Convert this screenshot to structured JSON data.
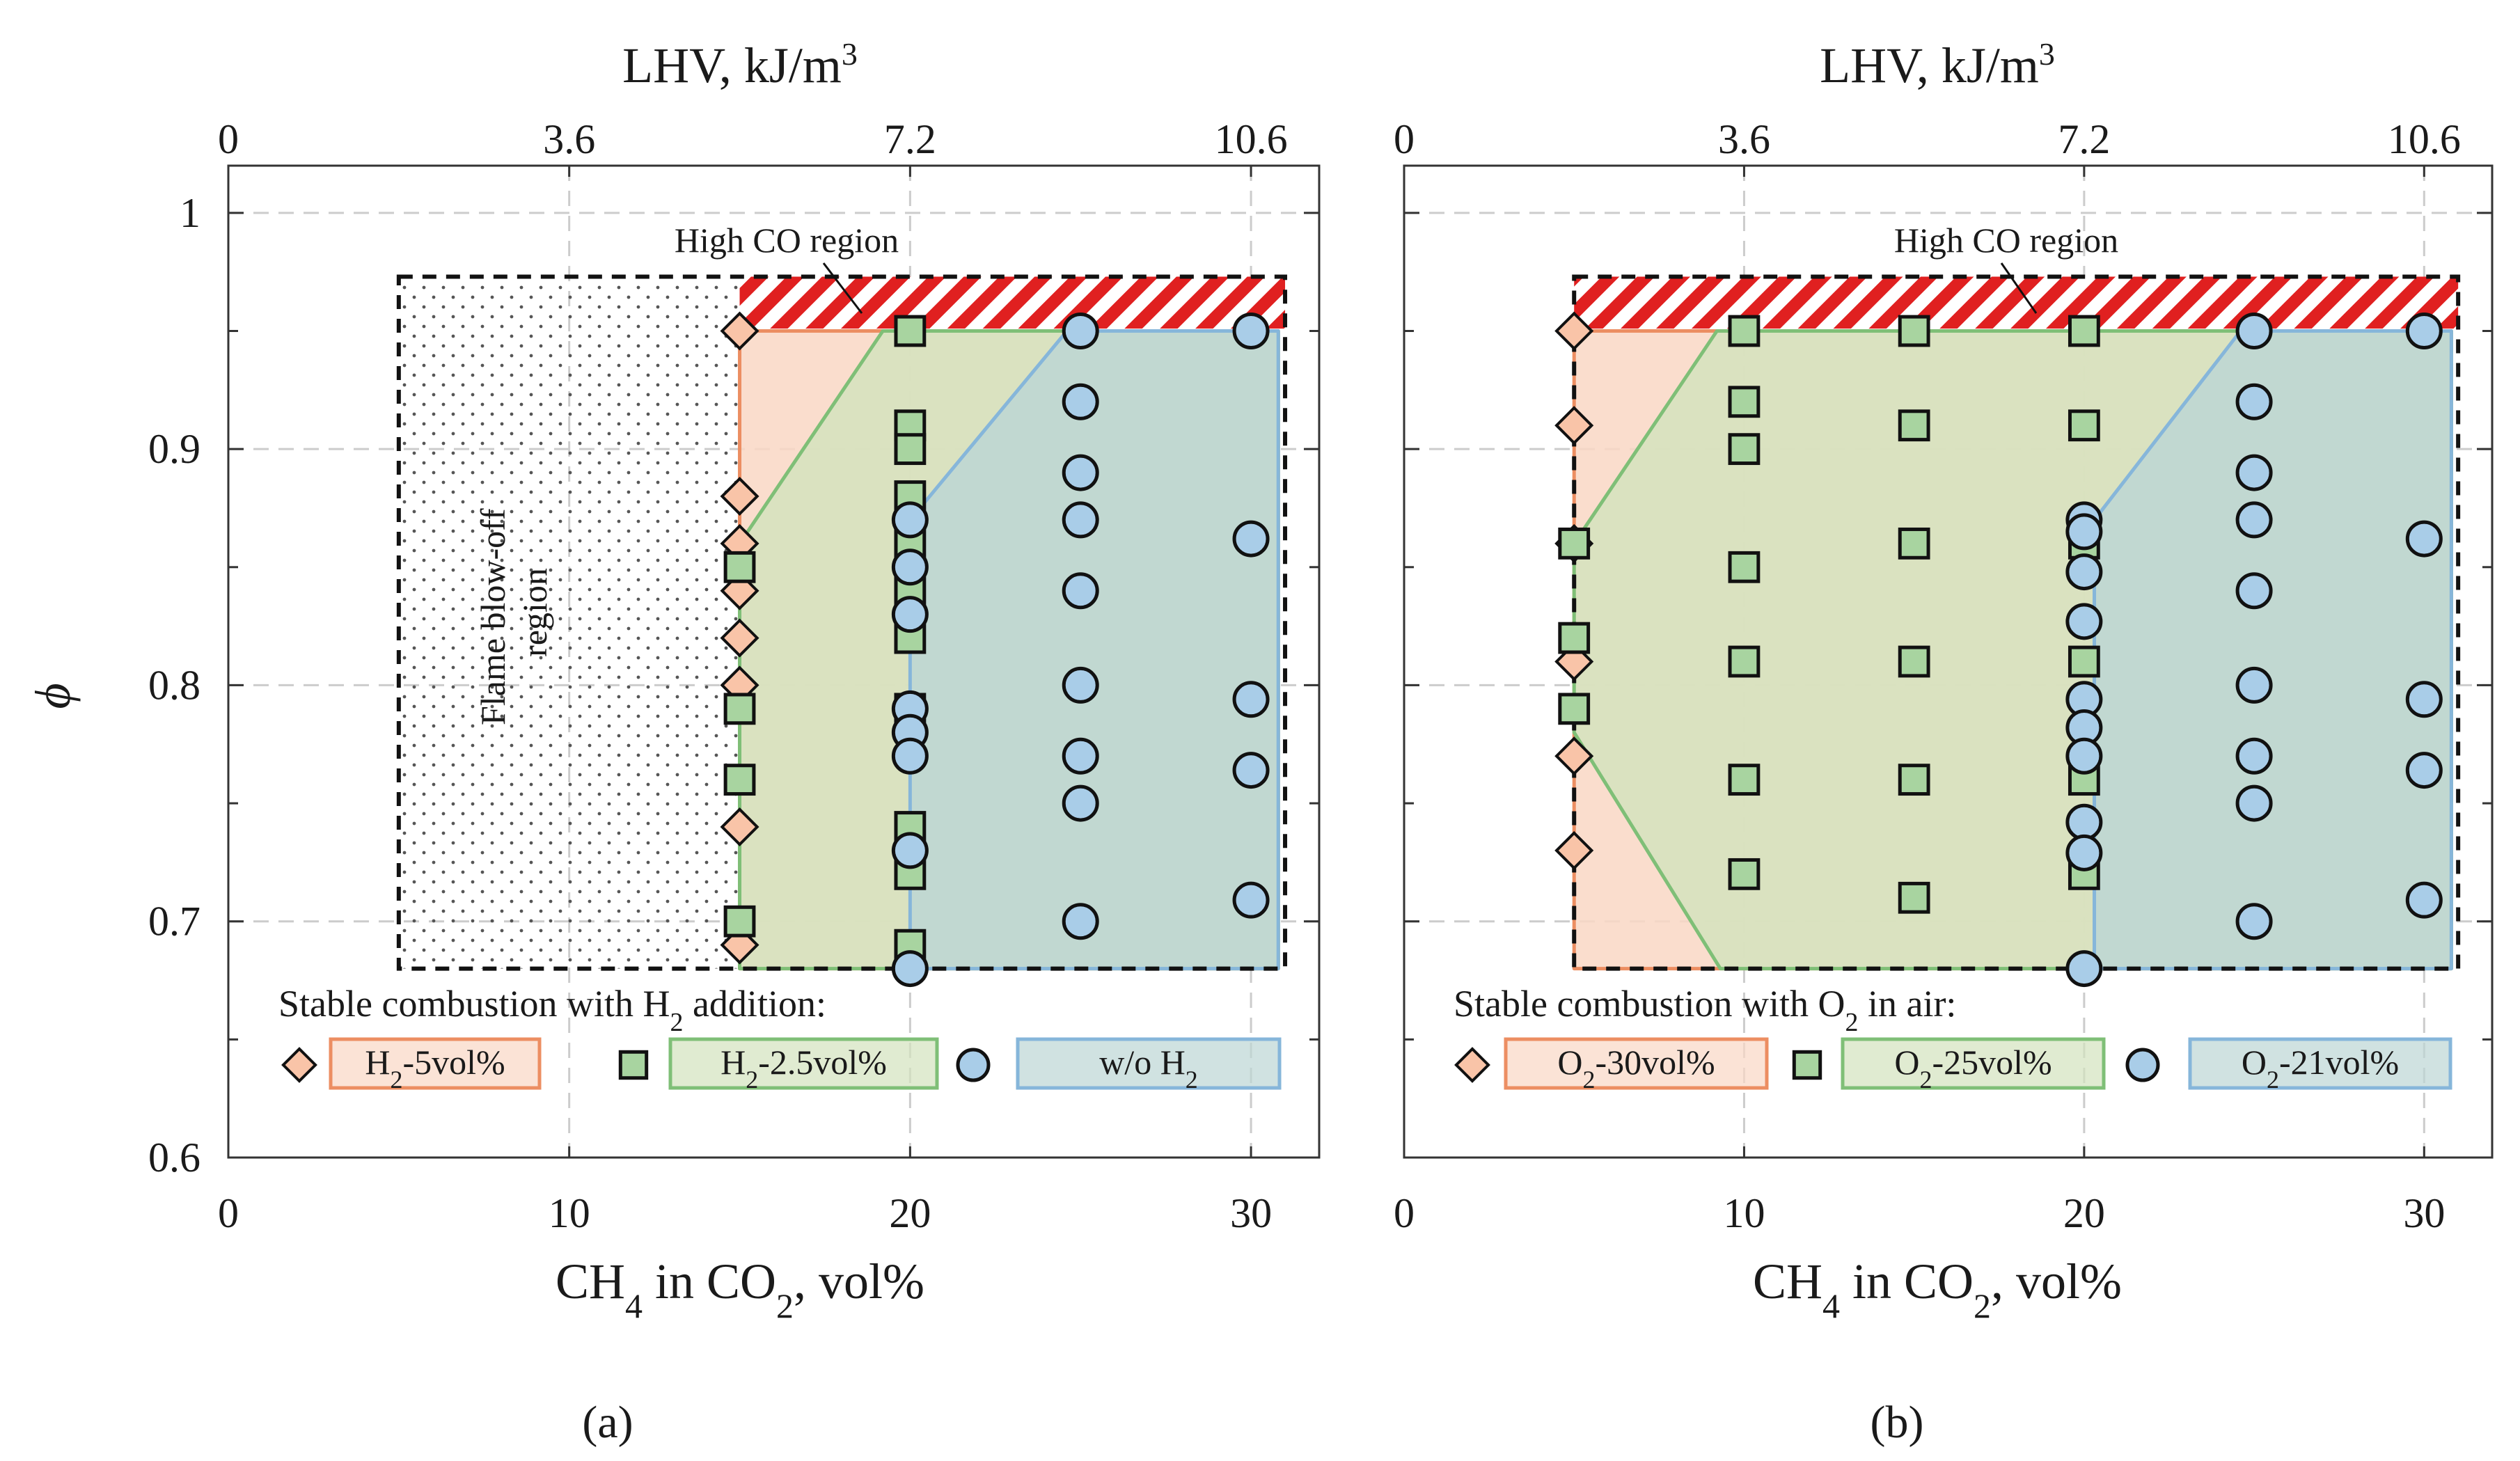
{
  "figure_labels": {
    "a": "(a)",
    "b": "(b)"
  },
  "colors": {
    "h2_5": "#f9c4a8",
    "h2_5_edge": "#ec8e62",
    "h2_25": "#a8d4a0",
    "h2_25_edge": "#7fbf77",
    "woh2": "#a9cde8",
    "woh2_edge": "#86b6da",
    "region_h2_5": "#f9d7c4",
    "region_h2_25": "#d3e3bd",
    "region_woh2": "#bcd6d4",
    "hatch": "#e02020",
    "grid": "#cccccc"
  },
  "chart_data": [
    {
      "type": "scatter",
      "panel": "a",
      "xlabel_bottom_main": "CH",
      "xlabel_bottom_sub": "4",
      "xlabel_bottom_mid": " in CO",
      "xlabel_bottom_sub2": "2",
      "xlabel_bottom_end": ", vol%",
      "xlabel_top_main": "LHV, kJ/m",
      "xlabel_top_sup": "3",
      "ylabel": "ϕ",
      "xlim": [
        0,
        32
      ],
      "ylim": [
        0.6,
        1.02
      ],
      "x_ticks": [
        0,
        10,
        20,
        30
      ],
      "x_tick_labels": [
        "0",
        "10",
        "20",
        "30"
      ],
      "x_top_ticks": [
        0,
        10,
        20,
        30
      ],
      "x_top_tick_labels": [
        "0",
        "3.6",
        "7.2",
        "10.6"
      ],
      "y_ticks": [
        0.6,
        0.7,
        0.8,
        0.9,
        1.0
      ],
      "y_tick_labels": [
        "0.6",
        "0.7",
        "0.8",
        "0.9",
        "1"
      ],
      "annotation_high_co": "High CO region",
      "annotation_blowoff_1": "Flame blow-off",
      "annotation_blowoff_2": "region",
      "legend_title_main": "Stable combustion with H",
      "legend_title_sub": "2",
      "legend_title_end": " addition:",
      "series": [
        {
          "name": "H2-5vol%",
          "label_main": "H",
          "label_sub": "2",
          "label_end": "-5vol%",
          "marker": "diamond",
          "points": [
            [
              15,
              0.95
            ],
            [
              15,
              0.88
            ],
            [
              15,
              0.86
            ],
            [
              15,
              0.84
            ],
            [
              15,
              0.82
            ],
            [
              15,
              0.8
            ],
            [
              15,
              0.74
            ],
            [
              15,
              0.69
            ]
          ],
          "region": [
            [
              15,
              0.95
            ],
            [
              30.8,
              0.95
            ],
            [
              30.8,
              0.68
            ],
            [
              15,
              0.68
            ]
          ]
        },
        {
          "name": "H2-2.5vol%",
          "label_main": "H",
          "label_sub": "2",
          "label_end": "-2.5vol%",
          "marker": "square",
          "points": [
            [
              15,
              0.85
            ],
            [
              15,
              0.79
            ],
            [
              15,
              0.76
            ],
            [
              15,
              0.7
            ],
            [
              20,
              0.95
            ],
            [
              20,
              0.91
            ],
            [
              20,
              0.9
            ],
            [
              20,
              0.88
            ],
            [
              20,
              0.86
            ],
            [
              20,
              0.84
            ],
            [
              20,
              0.82
            ],
            [
              20,
              0.79
            ],
            [
              20,
              0.74
            ],
            [
              20,
              0.72
            ],
            [
              20,
              0.69
            ]
          ],
          "region": [
            [
              15,
              0.86
            ],
            [
              19.2,
              0.95
            ],
            [
              30.8,
              0.95
            ],
            [
              30.8,
              0.68
            ],
            [
              15,
              0.68
            ]
          ]
        },
        {
          "name": "w/o H2",
          "label_main": "w/o H",
          "label_sub": "2",
          "label_end": "",
          "marker": "circle",
          "points": [
            [
              20,
              0.87
            ],
            [
              20,
              0.85
            ],
            [
              20,
              0.83
            ],
            [
              20,
              0.79
            ],
            [
              20,
              0.78
            ],
            [
              20,
              0.77
            ],
            [
              20,
              0.73
            ],
            [
              20,
              0.68
            ],
            [
              25,
              0.95
            ],
            [
              25,
              0.92
            ],
            [
              25,
              0.89
            ],
            [
              25,
              0.87
            ],
            [
              25,
              0.84
            ],
            [
              25,
              0.8
            ],
            [
              25,
              0.77
            ],
            [
              25,
              0.75
            ],
            [
              25,
              0.7
            ],
            [
              30,
              0.95
            ],
            [
              30,
              0.862
            ],
            [
              30,
              0.794
            ],
            [
              30,
              0.764
            ],
            [
              30,
              0.709
            ]
          ],
          "region": [
            [
              20,
              0.8
            ],
            [
              20,
              0.87
            ],
            [
              24.6,
              0.95
            ],
            [
              30.8,
              0.95
            ],
            [
              30.8,
              0.68
            ],
            [
              20,
              0.68
            ]
          ]
        }
      ],
      "blowoff_region": [
        [
          5,
          0.68
        ],
        [
          15,
          0.97
        ]
      ],
      "dashed_box": [
        [
          5,
          0.68
        ],
        [
          31,
          0.973
        ]
      ],
      "high_co_band": [
        [
          15,
          0.951
        ],
        [
          31,
          0.973
        ]
      ]
    },
    {
      "type": "scatter",
      "panel": "b",
      "xlabel_bottom_main": "CH",
      "xlabel_bottom_sub": "4",
      "xlabel_bottom_mid": " in CO",
      "xlabel_bottom_sub2": "2",
      "xlabel_bottom_end": ", vol%",
      "xlabel_top_main": "LHV, kJ/m",
      "xlabel_top_sup": "3",
      "xlim": [
        0,
        32
      ],
      "ylim": [
        0.6,
        1.02
      ],
      "x_ticks": [
        0,
        10,
        20,
        30
      ],
      "x_tick_labels": [
        "0",
        "10",
        "20",
        "30"
      ],
      "x_top_ticks": [
        0,
        10,
        20,
        30
      ],
      "x_top_tick_labels": [
        "0",
        "3.6",
        "7.2",
        "10.6"
      ],
      "y_ticks": [
        0.6,
        0.7,
        0.8,
        0.9,
        1.0
      ],
      "annotation_high_co": "High CO region",
      "legend_title_main": "Stable combustion with O",
      "legend_title_sub": "2",
      "legend_title_end": " in air:",
      "series": [
        {
          "name": "O2-30vol%",
          "label_main": "O",
          "label_sub": "2",
          "label_end": "-30vol%",
          "marker": "diamond",
          "points": [
            [
              5,
              0.95
            ],
            [
              5,
              0.91
            ],
            [
              5,
              0.86
            ],
            [
              5,
              0.81
            ],
            [
              5,
              0.77
            ],
            [
              5,
              0.73
            ]
          ],
          "region": [
            [
              5,
              0.95
            ],
            [
              30.8,
              0.95
            ],
            [
              30.8,
              0.68
            ],
            [
              5,
              0.68
            ]
          ]
        },
        {
          "name": "O2-25vol%",
          "label_main": "O",
          "label_sub": "2",
          "label_end": "-25vol%",
          "marker": "square",
          "points": [
            [
              5,
              0.86
            ],
            [
              5,
              0.82
            ],
            [
              5,
              0.79
            ],
            [
              10,
              0.95
            ],
            [
              10,
              0.92
            ],
            [
              10,
              0.9
            ],
            [
              10,
              0.85
            ],
            [
              10,
              0.81
            ],
            [
              10,
              0.76
            ],
            [
              10,
              0.72
            ],
            [
              15,
              0.95
            ],
            [
              15,
              0.91
            ],
            [
              15,
              0.86
            ],
            [
              15,
              0.81
            ],
            [
              15,
              0.76
            ],
            [
              15,
              0.71
            ],
            [
              20,
              0.95
            ],
            [
              20,
              0.91
            ],
            [
              20,
              0.86
            ],
            [
              20,
              0.81
            ],
            [
              20,
              0.76
            ],
            [
              20,
              0.72
            ]
          ],
          "region": [
            [
              5,
              0.86
            ],
            [
              9.2,
              0.95
            ],
            [
              30.8,
              0.95
            ],
            [
              30.8,
              0.68
            ],
            [
              9.3,
              0.68
            ],
            [
              5,
              0.78
            ]
          ]
        },
        {
          "name": "O2-21vol%",
          "label_main": "O",
          "label_sub": "2",
          "label_end": "-21vol%",
          "marker": "circle",
          "points": [
            [
              20,
              0.87
            ],
            [
              20,
              0.865
            ],
            [
              20,
              0.848
            ],
            [
              20,
              0.827
            ],
            [
              20,
              0.794
            ],
            [
              20,
              0.782
            ],
            [
              20,
              0.77
            ],
            [
              20,
              0.742
            ],
            [
              20,
              0.729
            ],
            [
              20,
              0.68
            ],
            [
              25,
              0.95
            ],
            [
              25,
              0.92
            ],
            [
              25,
              0.89
            ],
            [
              25,
              0.87
            ],
            [
              25,
              0.84
            ],
            [
              25,
              0.8
            ],
            [
              25,
              0.77
            ],
            [
              25,
              0.75
            ],
            [
              25,
              0.7
            ],
            [
              30,
              0.95
            ],
            [
              30,
              0.862
            ],
            [
              30,
              0.794
            ],
            [
              30,
              0.764
            ],
            [
              30,
              0.709
            ]
          ],
          "region": [
            [
              20.3,
              0.72
            ],
            [
              20.3,
              0.87
            ],
            [
              24.6,
              0.95
            ],
            [
              30.8,
              0.95
            ],
            [
              30.8,
              0.68
            ],
            [
              20.3,
              0.68
            ]
          ]
        }
      ],
      "dashed_box": [
        [
          5,
          0.68
        ],
        [
          31,
          0.973
        ]
      ],
      "high_co_band": [
        [
          5,
          0.951
        ],
        [
          31,
          0.973
        ]
      ]
    }
  ]
}
